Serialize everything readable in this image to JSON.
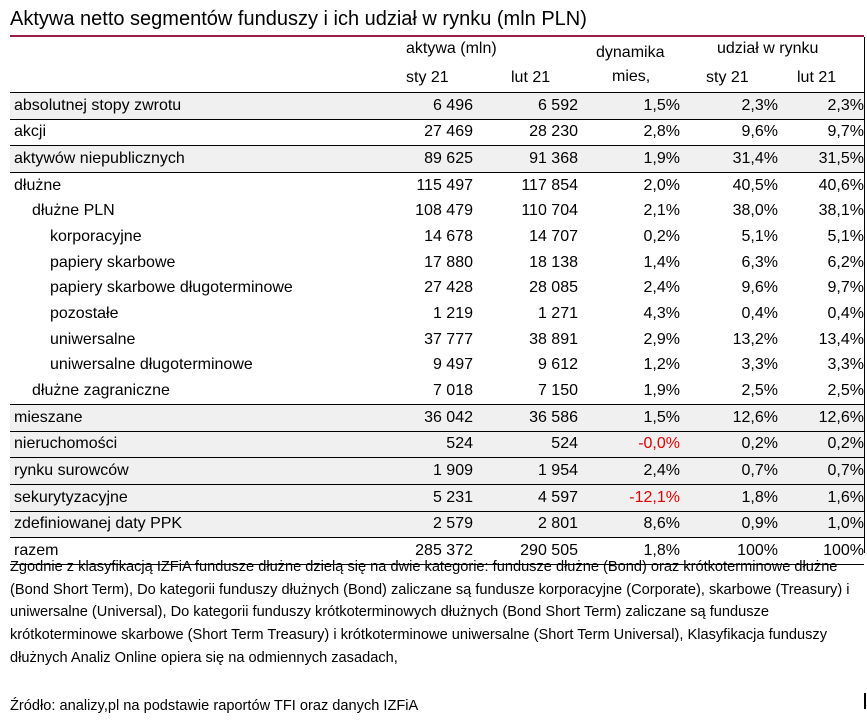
{
  "title": "Aktywa netto segmentów funduszy i ich udział w rynku (mln PLN)",
  "header": {
    "assets_group": "aktywa (mln)",
    "dynamics_line1": "dynamika",
    "dynamics_line2": "mies,",
    "share_group": "udział w rynku",
    "period_1": "sty 21",
    "period_2": "lut 21",
    "period_3": "sty 21",
    "period_4": "lut 21"
  },
  "rows": [
    {
      "label": "absolutnej stopy zwrotu",
      "assets_jan": "6 496",
      "assets_feb": "6 592",
      "dynamics": "1,5%",
      "share_jan": "2,3%",
      "share_feb": "2,3%"
    },
    {
      "label": "akcji",
      "assets_jan": "27 469",
      "assets_feb": "28 230",
      "dynamics": "2,8%",
      "share_jan": "9,6%",
      "share_feb": "9,7%"
    },
    {
      "label": "aktywów niepublicznych",
      "assets_jan": "89 625",
      "assets_feb": "91 368",
      "dynamics": "1,9%",
      "share_jan": "31,4%",
      "share_feb": "31,5%"
    },
    {
      "label": "dłużne",
      "assets_jan": "115 497",
      "assets_feb": "117 854",
      "dynamics": "2,0%",
      "share_jan": "40,5%",
      "share_feb": "40,6%"
    },
    {
      "label": "dłużne PLN",
      "assets_jan": "108 479",
      "assets_feb": "110 704",
      "dynamics": "2,1%",
      "share_jan": "38,0%",
      "share_feb": "38,1%"
    },
    {
      "label": "korporacyjne",
      "assets_jan": "14 678",
      "assets_feb": "14 707",
      "dynamics": "0,2%",
      "share_jan": "5,1%",
      "share_feb": "5,1%"
    },
    {
      "label": "papiery skarbowe",
      "assets_jan": "17 880",
      "assets_feb": "18 138",
      "dynamics": "1,4%",
      "share_jan": "6,3%",
      "share_feb": "6,2%"
    },
    {
      "label": "papiery skarbowe długoterminowe",
      "assets_jan": "27 428",
      "assets_feb": "28 085",
      "dynamics": "2,4%",
      "share_jan": "9,6%",
      "share_feb": "9,7%"
    },
    {
      "label": "pozostałe",
      "assets_jan": "1 219",
      "assets_feb": "1 271",
      "dynamics": "4,3%",
      "share_jan": "0,4%",
      "share_feb": "0,4%"
    },
    {
      "label": "uniwersalne",
      "assets_jan": "37 777",
      "assets_feb": "38 891",
      "dynamics": "2,9%",
      "share_jan": "13,2%",
      "share_feb": "13,4%"
    },
    {
      "label": "uniwersalne długoterminowe",
      "assets_jan": "9 497",
      "assets_feb": "9 612",
      "dynamics": "1,2%",
      "share_jan": "3,3%",
      "share_feb": "3,3%"
    },
    {
      "label": "dłużne zagraniczne",
      "assets_jan": "7 018",
      "assets_feb": "7 150",
      "dynamics": "1,9%",
      "share_jan": "2,5%",
      "share_feb": "2,5%"
    },
    {
      "label": "mieszane",
      "assets_jan": "36 042",
      "assets_feb": "36 586",
      "dynamics": "1,5%",
      "share_jan": "12,6%",
      "share_feb": "12,6%"
    },
    {
      "label": "nieruchomości",
      "assets_jan": "524",
      "assets_feb": "524",
      "dynamics": "-0,0%",
      "share_jan": "0,2%",
      "share_feb": "0,2%"
    },
    {
      "label": "rynku surowców",
      "assets_jan": "1 909",
      "assets_feb": "1 954",
      "dynamics": "2,4%",
      "share_jan": "0,7%",
      "share_feb": "0,7%"
    },
    {
      "label": "sekurytyzacyjne",
      "assets_jan": "5 231",
      "assets_feb": "4 597",
      "dynamics": "-12,1%",
      "share_jan": "1,8%",
      "share_feb": "1,6%"
    },
    {
      "label": "zdefiniowanej daty PPK",
      "assets_jan": "2 579",
      "assets_feb": "2 801",
      "dynamics": "8,6%",
      "share_jan": "0,9%",
      "share_feb": "1,0%"
    },
    {
      "label": "razem",
      "assets_jan": "285 372",
      "assets_feb": "290 505",
      "dynamics": "1,8%",
      "share_jan": "100%",
      "share_feb": "100%"
    }
  ],
  "colors": {
    "title_rule": "#9b1e48",
    "negative": "#e00000",
    "row_shade": "#f0f0f0"
  },
  "note": "Zgodnie z klasyfikacją IZFiA fundusze dłużne dzielą się na dwie kategorie: fundusze dłużne (Bond) oraz krótkoterminowe dłużne (Bond Short Term), Do kategorii funduszy dłużnych (Bond) zaliczane są fundusze korporacyjne (Corporate), skarbowe (Treasury) i uniwersalne (Universal), Do kategorii funduszy krótkoterminowych dłużnych (Bond Short Term) zaliczane są fundusze krótkoterminowe skarbowe (Short Term Treasury) i krótkoterminowe uniwersalne (Short Term Universal), Klasyfikacja funduszy dłużnych Analiz Online opiera się na odmiennych zasadach,",
  "source": "Źródło: analizy,pl na podstawie raportów TFI oraz danych IZFiA"
}
